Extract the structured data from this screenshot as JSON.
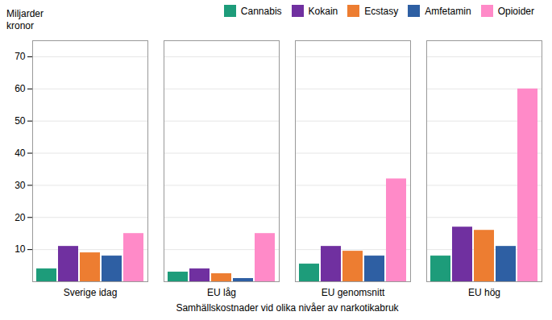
{
  "chart_data": {
    "type": "bar",
    "categories": [
      "Sverige idag",
      "EU låg",
      "EU genomsnitt",
      "EU hög"
    ],
    "series": [
      {
        "name": "Cannabis",
        "color": "#1d9c7a",
        "values": [
          4,
          3,
          5.5,
          8
        ]
      },
      {
        "name": "Kokain",
        "color": "#7030a0",
        "values": [
          11,
          4,
          11,
          17
        ]
      },
      {
        "name": "Ecstasy",
        "color": "#ed7d31",
        "values": [
          9,
          2.5,
          9.5,
          16
        ]
      },
      {
        "name": "Amfetamin",
        "color": "#2e5fa3",
        "values": [
          8,
          1,
          8,
          11
        ]
      },
      {
        "name": "Opioider",
        "color": "#ff8ac8",
        "values": [
          15,
          15,
          32,
          60
        ]
      }
    ],
    "xlabel": "Samhällskostnader vid olika nivåer av narkotikabruk",
    "ylabel": "Miljarder\nkronor",
    "ylim": [
      0,
      75
    ],
    "yticks": [
      10,
      20,
      30,
      40,
      50,
      60,
      70
    ],
    "grid": true,
    "legend": "top"
  }
}
